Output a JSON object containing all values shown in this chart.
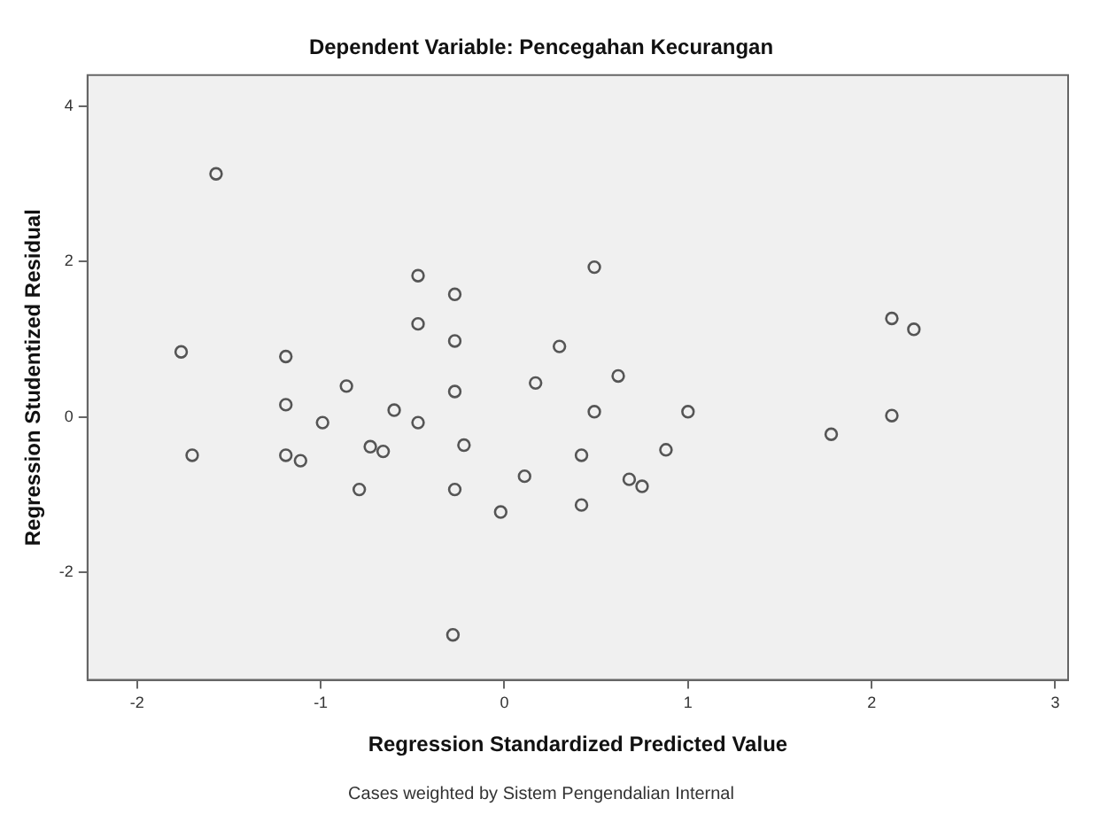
{
  "chart_data": {
    "type": "scatter",
    "title": "Dependent Variable: Pencegahan Kecurangan",
    "xlabel": "Regression Standardized Predicted Value",
    "ylabel": "Regression Studentized Residual",
    "annotations": [
      "Cases weighted by Sistem Pengendalian Internal"
    ],
    "x": [
      -1.57,
      -1.76,
      -1.7,
      -1.19,
      -1.19,
      -1.19,
      -1.11,
      -0.99,
      -0.86,
      -0.79,
      -0.73,
      -0.66,
      -0.6,
      -0.47,
      -0.47,
      -0.47,
      -0.27,
      -0.27,
      -0.27,
      -0.22,
      -0.27,
      -0.28,
      -0.02,
      0.17,
      0.3,
      0.11,
      0.42,
      0.42,
      0.49,
      0.49,
      0.62,
      0.68,
      0.75,
      0.88,
      1.0,
      1.78,
      2.11,
      2.23,
      2.11
    ],
    "values": [
      3.13,
      0.84,
      -0.49,
      0.78,
      0.16,
      -0.49,
      -0.56,
      -0.07,
      0.4,
      -0.93,
      -0.38,
      -0.44,
      0.09,
      -0.07,
      1.2,
      1.82,
      1.58,
      0.98,
      0.33,
      -0.36,
      -0.93,
      -2.8,
      -1.22,
      0.44,
      0.91,
      -0.76,
      -0.49,
      -1.13,
      1.93,
      0.07,
      0.53,
      -0.8,
      -0.89,
      -0.42,
      0.07,
      -0.22,
      1.27,
      1.13,
      0.02
    ],
    "color": "#555555",
    "marker": "circle",
    "xlim": [
      -2.27,
      3.07
    ],
    "ylim": [
      -3.38,
      4.4
    ],
    "xticks": [
      -2,
      -1,
      0,
      1,
      2,
      3
    ],
    "yticks": [
      -2,
      0,
      2,
      4
    ],
    "grid": false,
    "legend": false
  }
}
